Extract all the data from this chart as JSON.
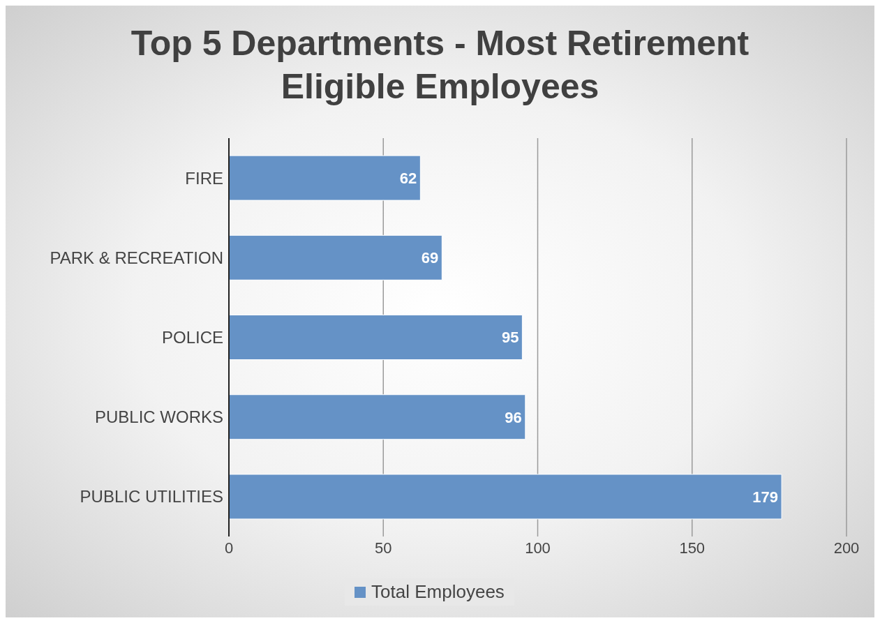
{
  "chart_data": {
    "type": "bar",
    "orientation": "horizontal",
    "title": "Top 5 Departments - Most Retirement Eligible Employees",
    "categories": [
      "FIRE",
      "PARK & RECREATION",
      "POLICE",
      "PUBLIC WORKS",
      "PUBLIC UTILITIES"
    ],
    "series": [
      {
        "name": "Total Employees",
        "color": "#6592c6",
        "values": [
          62,
          69,
          95,
          96,
          179
        ]
      }
    ],
    "xlim": [
      0,
      200
    ],
    "xticks": [
      0,
      50,
      100,
      150,
      200
    ],
    "grid": "x",
    "legend": "bottom",
    "data_labels": true
  }
}
